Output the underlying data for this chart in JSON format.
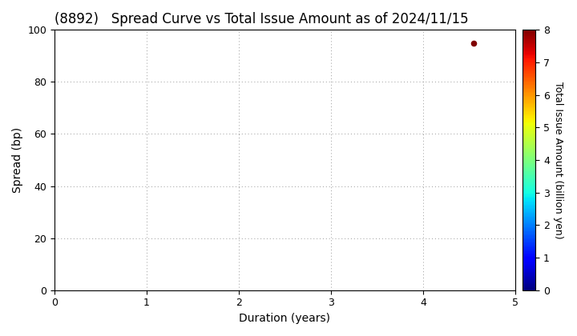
{
  "title": "(8892)   Spread Curve vs Total Issue Amount as of 2024/11/15",
  "xlabel": "Duration (years)",
  "ylabel": "Spread (bp)",
  "colorbar_label": "Total Issue Amount (billion yen)",
  "xlim": [
    0,
    5
  ],
  "ylim": [
    0,
    100
  ],
  "xticks": [
    0,
    1,
    2,
    3,
    4,
    5
  ],
  "yticks": [
    0,
    20,
    40,
    60,
    80,
    100
  ],
  "colorbar_ticks": [
    0,
    1,
    2,
    3,
    4,
    5,
    6,
    7,
    8
  ],
  "colorbar_vmin": 0,
  "colorbar_vmax": 8,
  "data_points": [
    {
      "duration": 4.55,
      "spread": 95,
      "total_issue": 8
    }
  ],
  "background_color": "#ffffff",
  "grid_color": "#999999",
  "title_fontsize": 12,
  "axis_label_fontsize": 10,
  "tick_fontsize": 9,
  "colorbar_label_fontsize": 9
}
